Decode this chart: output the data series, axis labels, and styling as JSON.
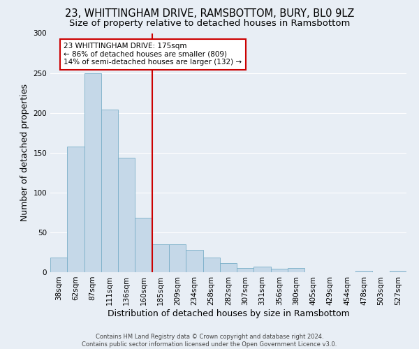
{
  "title": "23, WHITTINGHAM DRIVE, RAMSBOTTOM, BURY, BL0 9LZ",
  "subtitle": "Size of property relative to detached houses in Ramsbottom",
  "xlabel": "Distribution of detached houses by size in Ramsbottom",
  "ylabel": "Number of detached properties",
  "footer_line1": "Contains HM Land Registry data © Crown copyright and database right 2024.",
  "footer_line2": "Contains public sector information licensed under the Open Government Licence v3.0.",
  "categories": [
    "38sqm",
    "62sqm",
    "87sqm",
    "111sqm",
    "136sqm",
    "160sqm",
    "185sqm",
    "209sqm",
    "234sqm",
    "258sqm",
    "282sqm",
    "307sqm",
    "331sqm",
    "356sqm",
    "380sqm",
    "405sqm",
    "429sqm",
    "454sqm",
    "478sqm",
    "503sqm",
    "527sqm"
  ],
  "values": [
    18,
    158,
    250,
    204,
    144,
    68,
    35,
    35,
    28,
    18,
    11,
    5,
    7,
    4,
    5,
    0,
    0,
    0,
    2,
    0,
    2
  ],
  "bar_color": "#c5d8e8",
  "bar_edge_color": "#7aafc8",
  "annotation_line1": "23 WHITTINGHAM DRIVE: 175sqm",
  "annotation_line2": "← 86% of detached houses are smaller (809)",
  "annotation_line3": "14% of semi-detached houses are larger (132) →",
  "vline_color": "#cc0000",
  "annotation_box_color": "#ffffff",
  "annotation_box_edge": "#cc0000",
  "ylim": [
    0,
    300
  ],
  "yticks": [
    0,
    50,
    100,
    150,
    200,
    250,
    300
  ],
  "background_color": "#e8eef5",
  "grid_color": "#ffffff",
  "title_fontsize": 10.5,
  "subtitle_fontsize": 9.5,
  "axis_label_fontsize": 9,
  "tick_fontsize": 7.5,
  "vline_position": 6
}
